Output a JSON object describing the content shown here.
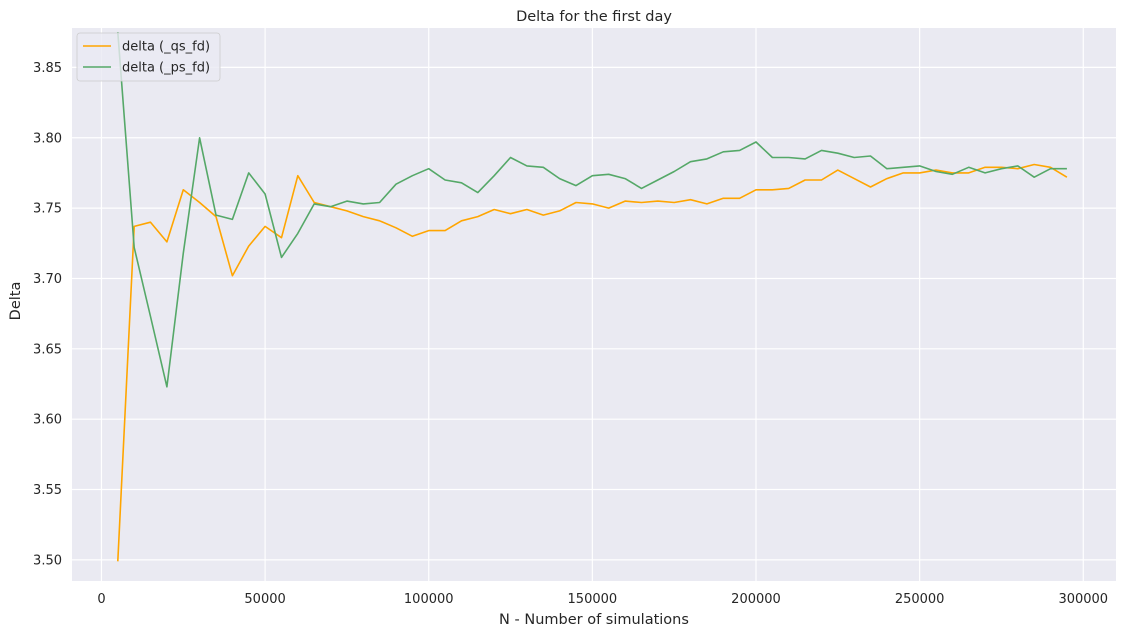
{
  "chart_data": {
    "type": "line",
    "title": "Delta for the first day",
    "xlabel": "N - Number of simulations",
    "ylabel": "Delta",
    "xlim": [
      -9000,
      310000
    ],
    "ylim": [
      3.485,
      3.878
    ],
    "xticks": [
      0,
      50000,
      100000,
      150000,
      200000,
      250000,
      300000
    ],
    "xtick_labels": [
      "0",
      "50000",
      "100000",
      "150000",
      "200000",
      "250000",
      "300000"
    ],
    "yticks": [
      3.5,
      3.55,
      3.6,
      3.65,
      3.7,
      3.75,
      3.8,
      3.85
    ],
    "ytick_labels": [
      "3.50",
      "3.55",
      "3.60",
      "3.65",
      "3.70",
      "3.75",
      "3.80",
      "3.85"
    ],
    "grid": true,
    "legend_position": "top-left",
    "background": "#eaeaf2",
    "x": [
      5000,
      10000,
      15000,
      20000,
      25000,
      30000,
      35000,
      40000,
      45000,
      50000,
      55000,
      60000,
      65000,
      70000,
      75000,
      80000,
      85000,
      90000,
      95000,
      100000,
      105000,
      110000,
      115000,
      120000,
      125000,
      130000,
      135000,
      140000,
      145000,
      150000,
      155000,
      160000,
      165000,
      170000,
      175000,
      180000,
      185000,
      190000,
      195000,
      200000,
      205000,
      210000,
      215000,
      220000,
      225000,
      230000,
      235000,
      240000,
      245000,
      250000,
      255000,
      260000,
      265000,
      270000,
      275000,
      280000,
      285000,
      290000,
      295000
    ],
    "series": [
      {
        "name": "delta (_qs_fd)",
        "color": "#ffa500",
        "values": [
          3.499,
          3.737,
          3.74,
          3.726,
          3.763,
          3.754,
          3.744,
          3.702,
          3.723,
          3.737,
          3.729,
          3.773,
          3.754,
          3.751,
          3.748,
          3.744,
          3.741,
          3.736,
          3.73,
          3.734,
          3.734,
          3.741,
          3.744,
          3.749,
          3.746,
          3.749,
          3.745,
          3.748,
          3.754,
          3.753,
          3.75,
          3.755,
          3.754,
          3.755,
          3.754,
          3.756,
          3.753,
          3.757,
          3.757,
          3.763,
          3.763,
          3.764,
          3.77,
          3.77,
          3.777,
          3.771,
          3.765,
          3.771,
          3.775,
          3.775,
          3.777,
          3.775,
          3.775,
          3.779,
          3.779,
          3.778,
          3.781,
          3.779,
          3.772
        ]
      },
      {
        "name": "delta (_ps_fd)",
        "color": "#55a868",
        "values": [
          3.875,
          3.722,
          3.673,
          3.623,
          3.718,
          3.8,
          3.745,
          3.742,
          3.775,
          3.76,
          3.715,
          3.732,
          3.753,
          3.751,
          3.755,
          3.753,
          3.754,
          3.767,
          3.773,
          3.778,
          3.77,
          3.768,
          3.761,
          3.773,
          3.786,
          3.78,
          3.779,
          3.771,
          3.766,
          3.773,
          3.774,
          3.771,
          3.764,
          3.77,
          3.776,
          3.783,
          3.785,
          3.79,
          3.791,
          3.797,
          3.786,
          3.786,
          3.785,
          3.791,
          3.789,
          3.786,
          3.787,
          3.778,
          3.779,
          3.78,
          3.776,
          3.774,
          3.779,
          3.775,
          3.778,
          3.78,
          3.772,
          3.778,
          3.778
        ]
      }
    ]
  }
}
